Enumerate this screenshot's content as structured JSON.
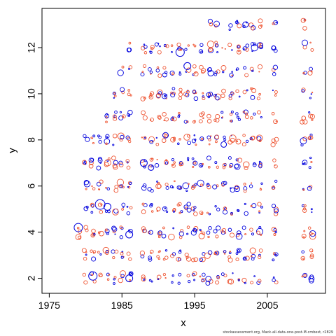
{
  "chart_data": {
    "type": "scatter",
    "title": "",
    "xlabel": "x",
    "ylabel": "y",
    "xlim": [
      1974,
      2013
    ],
    "ylim": [
      1.35,
      13.7
    ],
    "xticks": [
      "1975",
      "1985",
      "1995",
      "2005"
    ],
    "xtick_values": [
      1975,
      1985,
      1995,
      2005
    ],
    "yticks": [
      "2",
      "4",
      "6",
      "8",
      "10",
      "12"
    ],
    "ytick_values": [
      2,
      4,
      6,
      8,
      10,
      12
    ],
    "grid": false,
    "legend": "none",
    "colors": {
      "negative": "#ee5533",
      "positive": "#0000dd"
    },
    "marker": "open-circle sized by residual magnitude",
    "y_levels": [
      2,
      3,
      4,
      5,
      6,
      7,
      8,
      9,
      10,
      11,
      12,
      13
    ],
    "x_years_by_level": {
      "2": [
        1980,
        1981,
        1982,
        1983,
        1984,
        1985,
        1986,
        1988,
        1989,
        1990,
        1991,
        1992,
        1993,
        1994,
        1995,
        1996,
        1997,
        1998,
        1999,
        2000,
        2001,
        2002,
        2003,
        2004,
        2006,
        2010,
        2011
      ],
      "3": [
        1980,
        1981,
        1982,
        1983,
        1984,
        1985,
        1986,
        1988,
        1989,
        1990,
        1991,
        1992,
        1993,
        1994,
        1995,
        1996,
        1997,
        1998,
        1999,
        2000,
        2001,
        2002,
        2003,
        2004,
        2006,
        2010,
        2011
      ],
      "4": [
        1979,
        1980,
        1981,
        1982,
        1983,
        1984,
        1985,
        1986,
        1988,
        1989,
        1990,
        1991,
        1992,
        1993,
        1994,
        1995,
        1996,
        1997,
        1998,
        1999,
        2000,
        2001,
        2002,
        2003,
        2004,
        2006,
        2010,
        2011
      ],
      "5": [
        1980,
        1981,
        1982,
        1983,
        1984,
        1985,
        1986,
        1988,
        1989,
        1990,
        1991,
        1992,
        1993,
        1994,
        1995,
        1996,
        1997,
        1998,
        1999,
        2000,
        2001,
        2002,
        2003,
        2004,
        2006,
        2010,
        2011
      ],
      "6": [
        1980,
        1981,
        1982,
        1983,
        1984,
        1985,
        1986,
        1988,
        1989,
        1990,
        1991,
        1992,
        1993,
        1994,
        1995,
        1996,
        1997,
        1998,
        1999,
        2000,
        2001,
        2002,
        2003,
        2004,
        2006,
        2010,
        2011
      ],
      "7": [
        1980,
        1981,
        1982,
        1983,
        1984,
        1985,
        1986,
        1988,
        1989,
        1990,
        1991,
        1992,
        1993,
        1994,
        1995,
        1996,
        1997,
        1998,
        1999,
        2000,
        2001,
        2002,
        2003,
        2004,
        2006,
        2010,
        2011
      ],
      "8": [
        1980,
        1981,
        1982,
        1983,
        1984,
        1985,
        1986,
        1988,
        1989,
        1990,
        1991,
        1992,
        1993,
        1994,
        1995,
        1996,
        1997,
        1998,
        1999,
        2000,
        2001,
        2002,
        2003,
        2004,
        2006,
        2010,
        2011
      ],
      "9": [
        1983,
        1984,
        1985,
        1986,
        1988,
        1989,
        1990,
        1991,
        1992,
        1993,
        1994,
        1995,
        1996,
        1997,
        1998,
        1999,
        2000,
        2001,
        2002,
        2003,
        2004,
        2006,
        2010,
        2011
      ],
      "10": [
        1984,
        1985,
        1986,
        1988,
        1989,
        1990,
        1991,
        1992,
        1993,
        1994,
        1995,
        1996,
        1997,
        1998,
        1999,
        2000,
        2001,
        2002,
        2003,
        2004,
        2006,
        2010,
        2011
      ],
      "11": [
        1985,
        1986,
        1988,
        1989,
        1990,
        1991,
        1992,
        1993,
        1994,
        1995,
        1996,
        1997,
        1998,
        1999,
        2000,
        2001,
        2002,
        2003,
        2004,
        2006,
        2010,
        2011
      ],
      "12": [
        1986,
        1988,
        1989,
        1990,
        1991,
        1992,
        1993,
        1994,
        1995,
        1996,
        1997,
        1998,
        1999,
        2000,
        2001,
        2002,
        2003,
        2004,
        2006,
        2010,
        2011
      ],
      "13": [
        1997,
        1998,
        2000,
        2001,
        2002,
        2003,
        2004,
        2006,
        2010
      ]
    },
    "large_points": [
      {
        "x": 1979,
        "y": 4.2,
        "sign": "positive",
        "size": 6
      },
      {
        "x": 1981,
        "y": 2.1,
        "sign": "positive",
        "size": 6
      },
      {
        "x": 1982,
        "y": 5.2,
        "sign": "positive",
        "size": 7
      },
      {
        "x": 1983,
        "y": 5.1,
        "sign": "positive",
        "size": 5
      },
      {
        "x": 1986,
        "y": 2.0,
        "sign": "positive",
        "size": 5
      },
      {
        "x": 1986,
        "y": 3.9,
        "sign": "positive",
        "size": 5
      },
      {
        "x": 1988,
        "y": 7.0,
        "sign": "positive",
        "size": 5
      },
      {
        "x": 1989,
        "y": 6.8,
        "sign": "positive",
        "size": 4
      },
      {
        "x": 1991,
        "y": 8.2,
        "sign": "positive",
        "size": 4
      },
      {
        "x": 1993,
        "y": 11.8,
        "sign": "positive",
        "size": 6
      },
      {
        "x": 1994,
        "y": 11.2,
        "sign": "positive",
        "size": 5
      },
      {
        "x": 1999,
        "y": 7.8,
        "sign": "positive",
        "size": 4
      },
      {
        "x": 2002,
        "y": 13.0,
        "sign": "positive",
        "size": 4
      },
      {
        "x": 2004,
        "y": 12.1,
        "sign": "positive",
        "size": 4
      },
      {
        "x": 2003,
        "y": 3.2,
        "sign": "negative",
        "size": 4
      }
    ]
  },
  "footer": "stockassessment.org, Mack-all-data-one-post-M-cmbest, r2829"
}
